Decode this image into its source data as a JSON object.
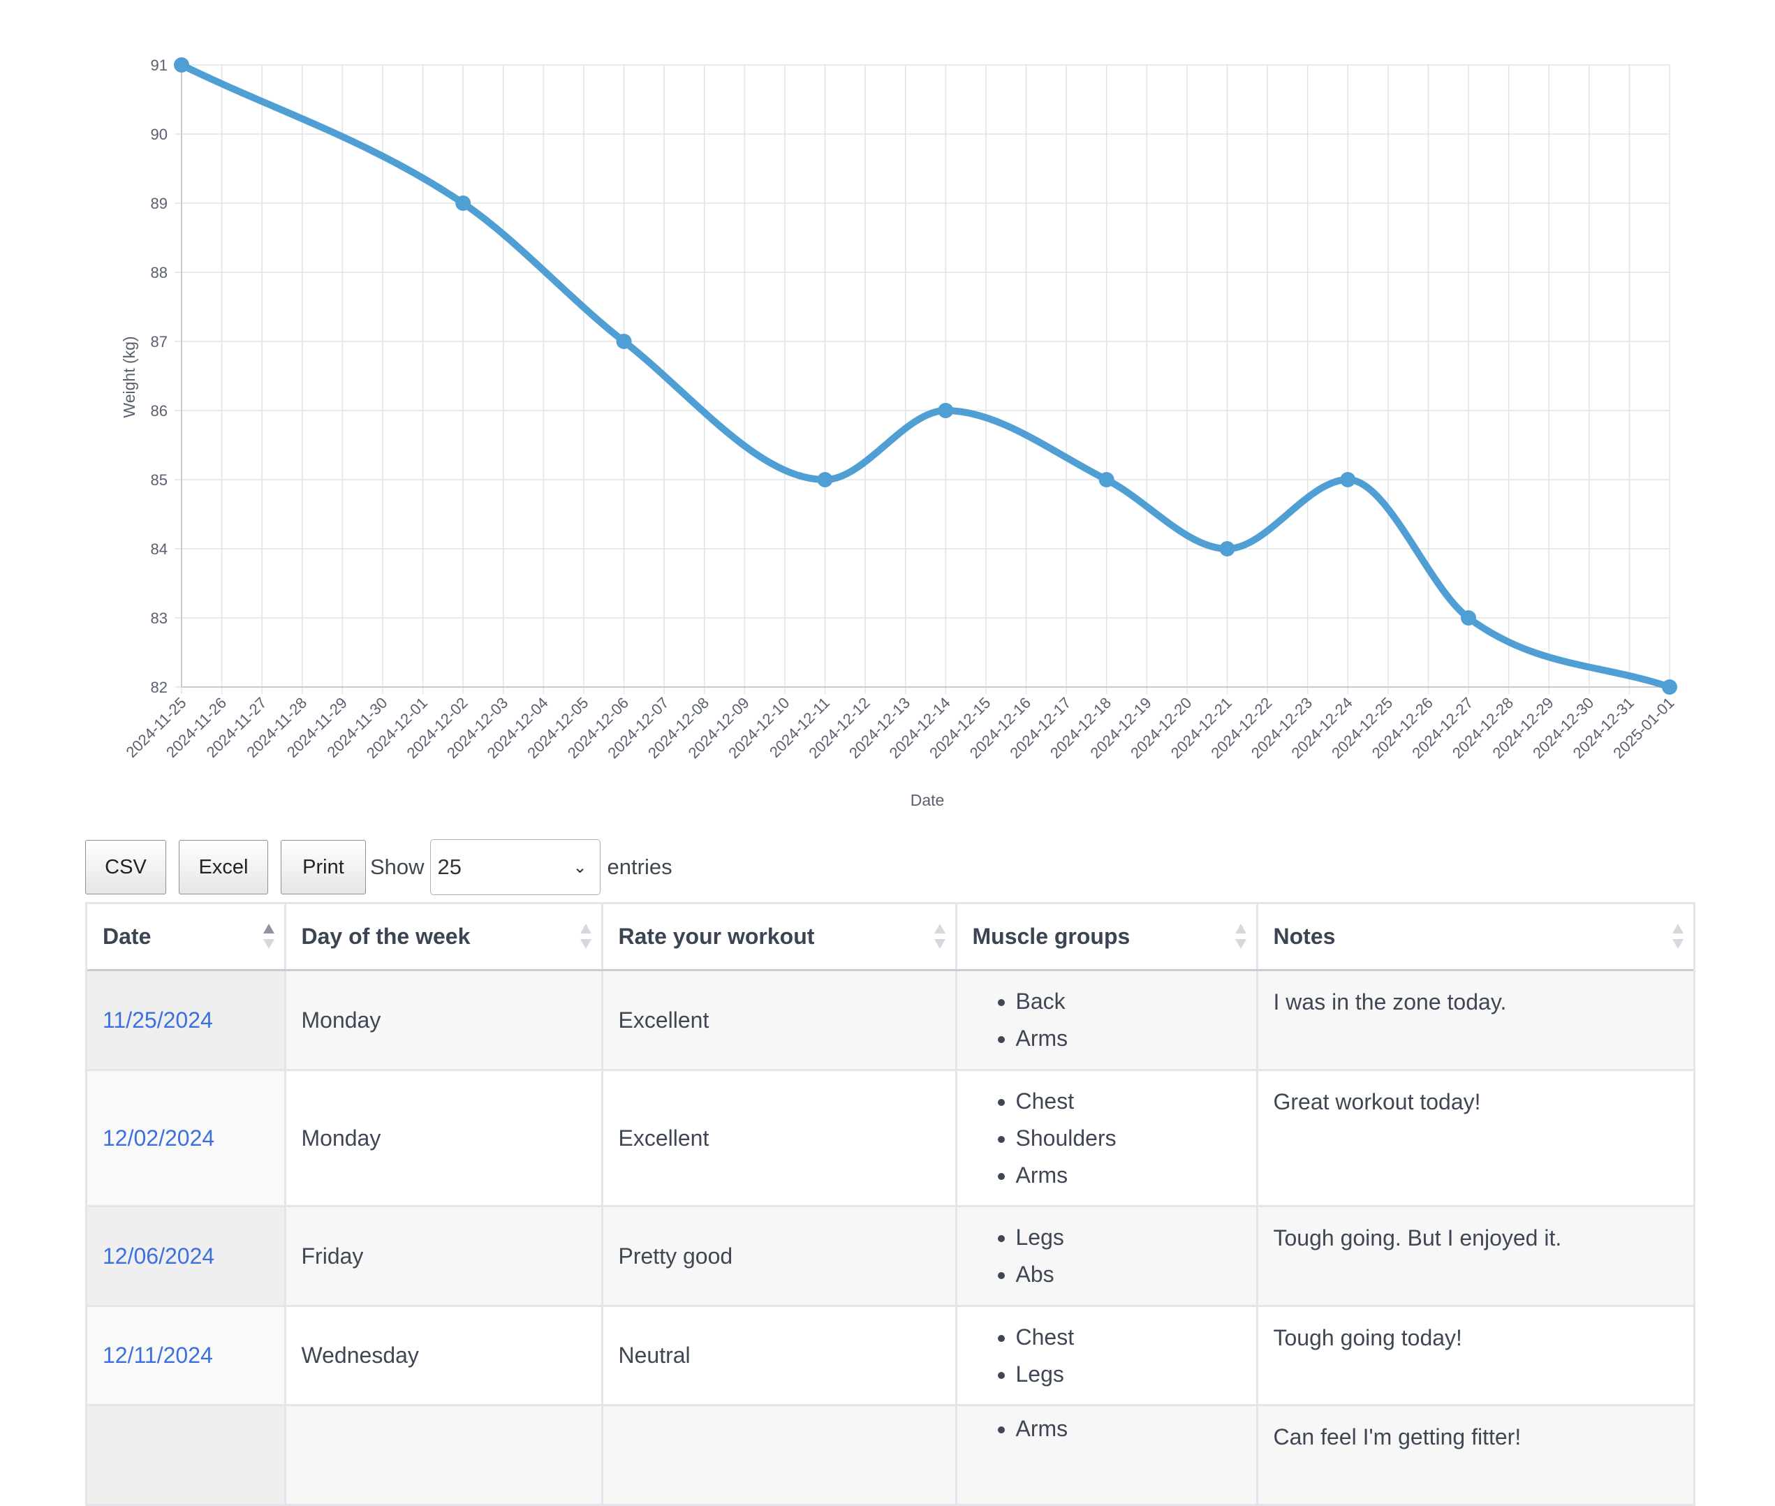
{
  "chart_data": {
    "type": "line",
    "xlabel": "Date",
    "ylabel": "Weight (kg)",
    "ylim": [
      82,
      91
    ],
    "yticks": [
      91,
      90,
      89,
      88,
      87,
      86,
      85,
      84,
      83,
      82
    ],
    "grid": true,
    "x_tick_labels": [
      "2024-11-25",
      "2024-11-26",
      "2024-11-27",
      "2024-11-28",
      "2024-11-29",
      "2024-11-30",
      "2024-12-01",
      "2024-12-02",
      "2024-12-03",
      "2024-12-04",
      "2024-12-05",
      "2024-12-06",
      "2024-12-07",
      "2024-12-08",
      "2024-12-09",
      "2024-12-10",
      "2024-12-11",
      "2024-12-12",
      "2024-12-13",
      "2024-12-14",
      "2024-12-15",
      "2024-12-16",
      "2024-12-17",
      "2024-12-18",
      "2024-12-19",
      "2024-12-20",
      "2024-12-21",
      "2024-12-22",
      "2024-12-23",
      "2024-12-24",
      "2024-12-25",
      "2024-12-26",
      "2024-12-27",
      "2024-12-28",
      "2024-12-29",
      "2024-12-30",
      "2024-12-31",
      "2025-01-01"
    ],
    "color": "#4f9fd4",
    "points": [
      {
        "x": "2024-11-25",
        "y": 91
      },
      {
        "x": "2024-12-02",
        "y": 89
      },
      {
        "x": "2024-12-06",
        "y": 87
      },
      {
        "x": "2024-12-11",
        "y": 85
      },
      {
        "x": "2024-12-14",
        "y": 86
      },
      {
        "x": "2024-12-18",
        "y": 85
      },
      {
        "x": "2024-12-21",
        "y": 84
      },
      {
        "x": "2024-12-24",
        "y": 85
      },
      {
        "x": "2024-12-27",
        "y": 83
      },
      {
        "x": "2025-01-01",
        "y": 82
      }
    ]
  },
  "controls": {
    "csv_label": "CSV",
    "excel_label": "Excel",
    "print_label": "Print",
    "show_label": "Show",
    "page_length": "25",
    "entries_label": "entries"
  },
  "table": {
    "columns": [
      "Date",
      "Day of the week",
      "Rate your workout",
      "Muscle groups",
      "Notes"
    ],
    "rows": [
      {
        "date": "11/25/2024",
        "day": "Monday",
        "rating": "Excellent",
        "muscles": [
          "Back",
          "Arms"
        ],
        "notes": "I was in the zone today."
      },
      {
        "date": "12/02/2024",
        "day": "Monday",
        "rating": "Excellent",
        "muscles": [
          "Chest",
          "Shoulders",
          "Arms"
        ],
        "notes": "Great workout today!"
      },
      {
        "date": "12/06/2024",
        "day": "Friday",
        "rating": "Pretty good",
        "muscles": [
          "Legs",
          "Abs"
        ],
        "notes": "Tough going. But I enjoyed it."
      },
      {
        "date": "12/11/2024",
        "day": "Wednesday",
        "rating": "Neutral",
        "muscles": [
          "Chest",
          "Legs"
        ],
        "notes": "Tough going today!"
      },
      {
        "date": "",
        "day": "",
        "rating": "",
        "muscles": [
          "Arms"
        ],
        "notes": "Can feel I'm getting fitter!"
      }
    ]
  }
}
